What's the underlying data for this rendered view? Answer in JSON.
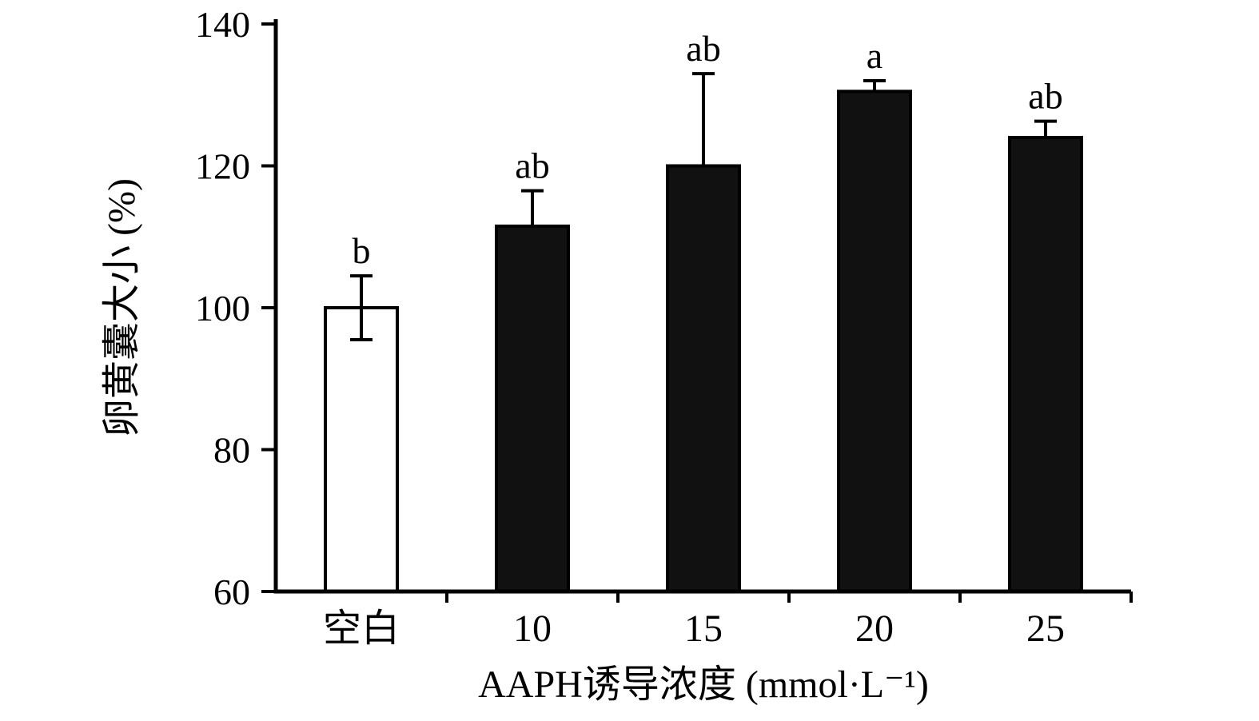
{
  "chart_data": {
    "type": "bar",
    "title": "",
    "categories": [
      "空白",
      "10",
      "15",
      "20",
      "25"
    ],
    "values": [
      100,
      111.5,
      120,
      130.5,
      124
    ],
    "errors_up": [
      4.5,
      5,
      13,
      1.5,
      2.3
    ],
    "errors_down": [
      4.5,
      0,
      0,
      0,
      0
    ],
    "sig_letters": [
      "b",
      "ab",
      "ab",
      "a",
      "ab"
    ],
    "bar_colors": [
      "#ffffff",
      "#111111",
      "#111111",
      "#111111",
      "#111111"
    ],
    "bar_edge_color": "#000000",
    "xlabel": "AAPH诱导浓度 (mmol·L⁻¹)",
    "ylabel": "卵黄囊大小 (%)",
    "ylim": [
      60,
      140
    ],
    "yticks": [
      60,
      80,
      100,
      120,
      140
    ],
    "grid": false,
    "legend": "none",
    "axis_color": "#000000",
    "background": "#ffffff"
  }
}
